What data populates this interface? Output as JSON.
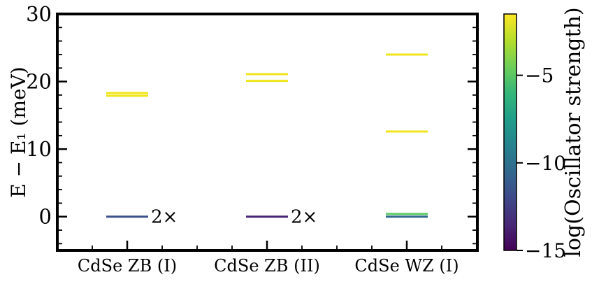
{
  "chart_data": {
    "type": "scatter",
    "ylabel": "E − E₁ (meV)",
    "ylim": [
      -5,
      30
    ],
    "yticks": [
      0,
      10,
      20,
      30
    ],
    "categories": [
      "CdSe ZB (I)",
      "CdSe ZB (II)",
      "CdSe WZ (I)"
    ],
    "levels": [
      {
        "category": 0,
        "y": 0.0,
        "color": "#3b528b",
        "note": "2×"
      },
      {
        "category": 0,
        "y": 17.9,
        "color": "#f0e51c"
      },
      {
        "category": 0,
        "y": 18.3,
        "color": "#f0e51c"
      },
      {
        "category": 1,
        "y": 0.0,
        "color": "#482677",
        "note": "2×"
      },
      {
        "category": 1,
        "y": 20.1,
        "color": "#f0e51c"
      },
      {
        "category": 1,
        "y": 21.1,
        "color": "#f0e51c"
      },
      {
        "category": 2,
        "y": 0.0,
        "color": "#31688e"
      },
      {
        "category": 2,
        "y": 0.4,
        "color": "#5ec962"
      },
      {
        "category": 2,
        "y": 12.6,
        "color": "#f0e51c"
      },
      {
        "category": 2,
        "y": 24.0,
        "color": "#f0e51c"
      }
    ],
    "colorbar": {
      "label": "log(Oscillator strength)",
      "range": [
        -15,
        -1.5
      ],
      "ticks": [
        -15,
        -10,
        -5
      ],
      "tick_labels": [
        "−15",
        "−10",
        "−5"
      ],
      "colormap": "viridis",
      "colors": [
        "#440154",
        "#482878",
        "#3e4989",
        "#31688e",
        "#26828e",
        "#1f9e89",
        "#35b779",
        "#6ece58",
        "#b5de2b",
        "#fde725"
      ]
    },
    "grid": false,
    "legend": "none"
  }
}
